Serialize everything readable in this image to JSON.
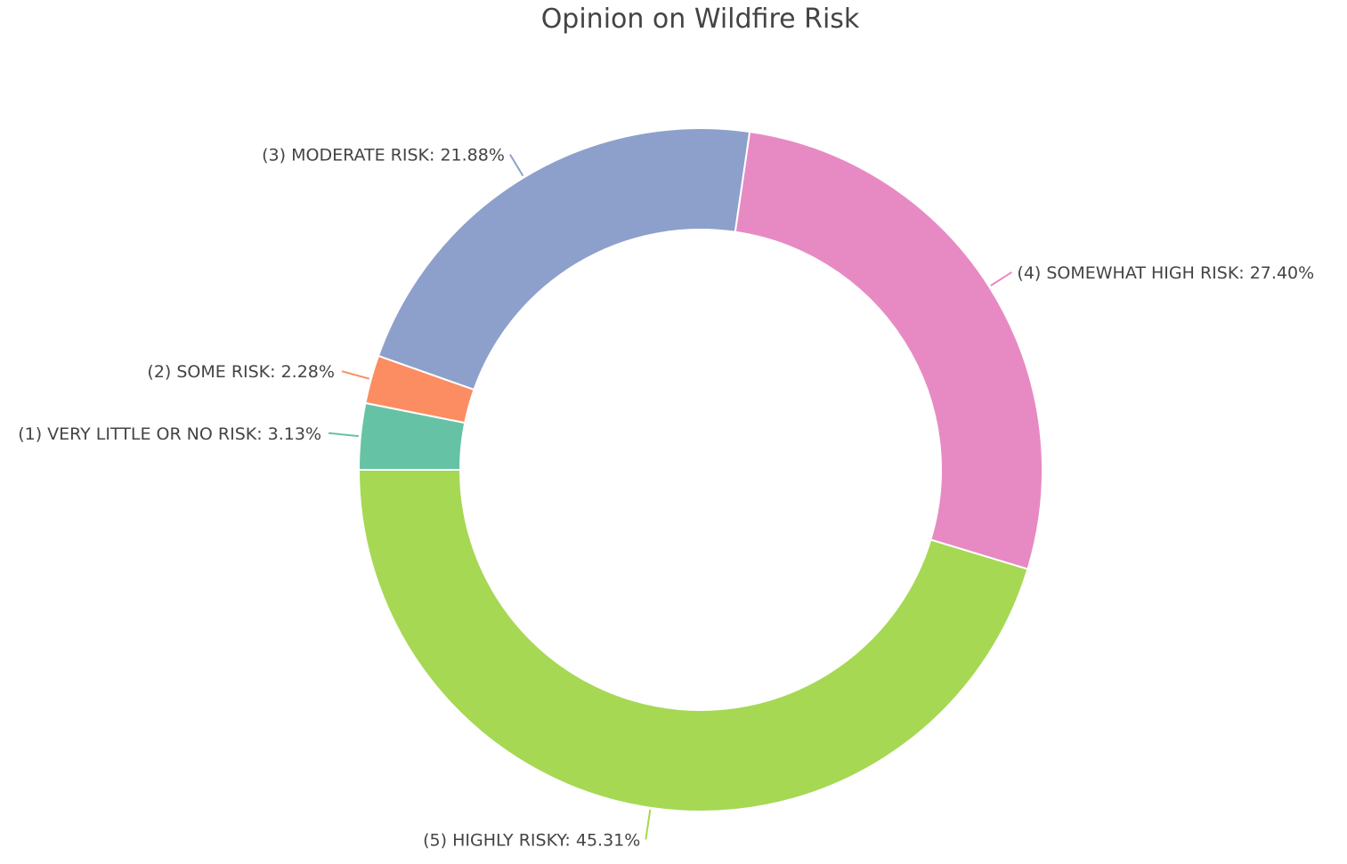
{
  "chart_data": {
    "type": "pie",
    "title": "Opinion on Wildfire Risk",
    "hole": true,
    "slices": [
      {
        "label": "(1) VERY LITTLE OR NO RISK",
        "value": 3.13,
        "display": "(1) VERY LITTLE OR NO RISK: 3.13%",
        "color": "#66c2a5"
      },
      {
        "label": "(2) SOME RISK",
        "value": 2.28,
        "display": "(2) SOME RISK: 2.28%",
        "color": "#fc8d62"
      },
      {
        "label": "(3) MODERATE RISK",
        "value": 21.88,
        "display": "(3) MODERATE RISK: 21.88%",
        "color": "#8da0cb"
      },
      {
        "label": "(4) SOMEWHAT HIGH RISK",
        "value": 27.4,
        "display": "(4) SOMEWHAT HIGH RISK: 27.40%",
        "color": "#e78ac3"
      },
      {
        "label": "(5) HIGHLY RISKY",
        "value": 45.31,
        "display": "(5) HIGHLY RISKY: 45.31%",
        "color": "#a6d854"
      }
    ]
  }
}
